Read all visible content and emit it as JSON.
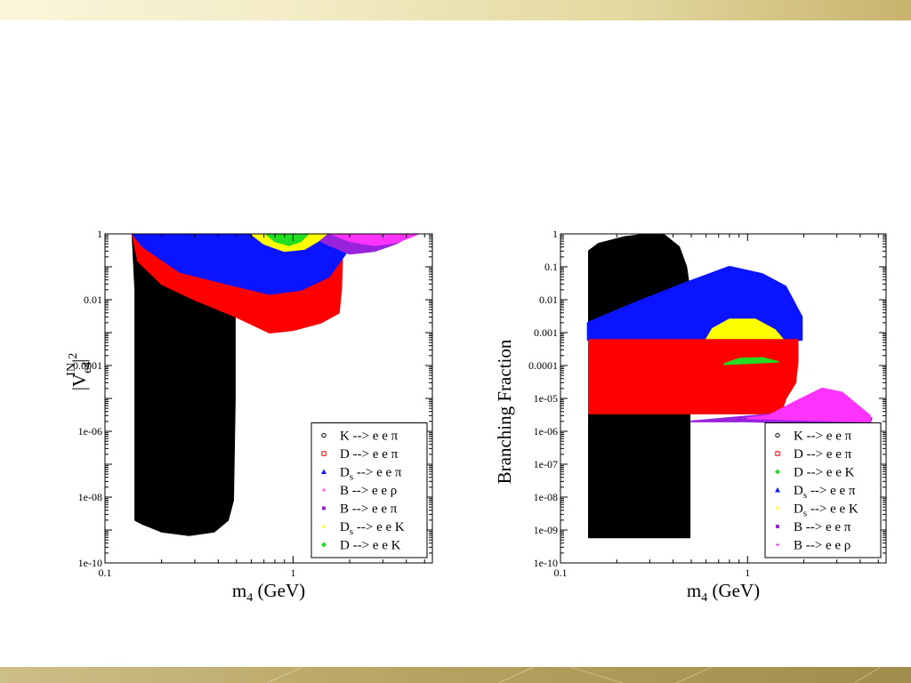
{
  "colors": {
    "top_bar": "#f2ebc3",
    "bottom_bar": "#b8a462",
    "black": "#000000",
    "red": "#ff0000",
    "blue": "#0a14ff",
    "green": "#22dd22",
    "yellow": "#ffff00",
    "magenta": "#ff33ff",
    "purple": "#9922dd"
  },
  "chart_data": [
    {
      "type": "scatter",
      "title": "",
      "xlabel": "m4 (GeV)",
      "ylabel": "|Ve4IN|2",
      "xscale": "log",
      "yscale": "log",
      "xlim": [
        0.1,
        5.5
      ],
      "ylim": [
        1e-10,
        1
      ],
      "xticks": [
        "0.1",
        "1"
      ],
      "yticks": [
        "1e-10",
        "1e-08",
        "1e-06",
        "0.0001",
        "0.01",
        "1"
      ],
      "legend": {
        "placement": "bottom-right",
        "entries": [
          {
            "label": "K --> e e π",
            "color": "#000000",
            "marker": "circle"
          },
          {
            "label": "D --> e e π",
            "color": "#ff0000",
            "marker": "square"
          },
          {
            "label": "Ds --> e e π",
            "color": "#0a14ff",
            "marker": "triangle"
          },
          {
            "label": "B --> e e ρ",
            "color": "#ff33ff",
            "marker": "plus"
          },
          {
            "label": "B --> e e π",
            "color": "#9922dd",
            "marker": "x"
          },
          {
            "label": "Ds --> e e K",
            "color": "#ffff00",
            "marker": "star"
          },
          {
            "label": "D --> e e K",
            "color": "#22dd22",
            "marker": "diamond"
          }
        ]
      },
      "series": [
        {
          "name": "K --> e e π",
          "color": "#000000",
          "points": [
            [
              0.14,
              1
            ],
            [
              0.145,
              0.02
            ],
            [
              0.145,
              2e-09
            ],
            [
              0.16,
              1.5e-09
            ],
            [
              0.2,
              9e-10
            ],
            [
              0.28,
              7e-10
            ],
            [
              0.38,
              9e-10
            ],
            [
              0.45,
              2e-09
            ],
            [
              0.48,
              8e-09
            ],
            [
              0.49,
              1e-05
            ],
            [
              0.49,
              1
            ]
          ]
        },
        {
          "name": "D --> e e π",
          "color": "#ff0000",
          "points": [
            [
              0.14,
              1
            ],
            [
              0.15,
              0.15
            ],
            [
              0.2,
              0.03
            ],
            [
              0.3,
              0.01
            ],
            [
              0.5,
              0.003
            ],
            [
              0.75,
              0.001
            ],
            [
              1,
              0.0012
            ],
            [
              1.4,
              0.002
            ],
            [
              1.75,
              0.004
            ],
            [
              1.8,
              0.02
            ],
            [
              1.82,
              0.15
            ],
            [
              1.85,
              1
            ]
          ]
        },
        {
          "name": "Ds --> e e π",
          "color": "#0a14ff",
          "points": [
            [
              0.14,
              1
            ],
            [
              0.16,
              0.4
            ],
            [
              0.25,
              0.07
            ],
            [
              0.45,
              0.03
            ],
            [
              0.75,
              0.015
            ],
            [
              1.1,
              0.02
            ],
            [
              1.55,
              0.05
            ],
            [
              1.9,
              0.25
            ],
            [
              2.05,
              1
            ]
          ]
        },
        {
          "name": "B --> e e π",
          "color": "#9922dd",
          "points": [
            [
              1.2,
              1
            ],
            [
              1.5,
              0.5
            ],
            [
              2,
              0.25
            ],
            [
              2.7,
              0.3
            ],
            [
              3.5,
              0.5
            ],
            [
              4.4,
              1
            ]
          ]
        },
        {
          "name": "B --> e e ρ",
          "color": "#ff33ff",
          "points": [
            [
              1.6,
              1
            ],
            [
              2,
              0.6
            ],
            [
              2.7,
              0.45
            ],
            [
              3.5,
              0.55
            ],
            [
              4.2,
              0.8
            ],
            [
              4.6,
              1
            ]
          ]
        },
        {
          "name": "Ds --> e e K",
          "color": "#ffff00",
          "points": [
            [
              0.6,
              1
            ],
            [
              0.7,
              0.5
            ],
            [
              0.9,
              0.3
            ],
            [
              1.15,
              0.35
            ],
            [
              1.35,
              0.6
            ],
            [
              1.5,
              1
            ]
          ]
        },
        {
          "name": "D --> e e K",
          "color": "#22dd22",
          "points": [
            [
              0.72,
              1
            ],
            [
              0.8,
              0.6
            ],
            [
              0.95,
              0.45
            ],
            [
              1.1,
              0.6
            ],
            [
              1.2,
              1
            ]
          ]
        }
      ]
    },
    {
      "type": "scatter",
      "title": "",
      "xlabel": "m4 (GeV)",
      "ylabel": "Branching Fraction",
      "xscale": "log",
      "yscale": "log",
      "xlim": [
        0.1,
        5.5
      ],
      "ylim": [
        1e-10,
        1
      ],
      "xticks": [
        "0.1",
        "1"
      ],
      "yticks": [
        "1e-10",
        "1e-09",
        "1e-08",
        "1e-07",
        "1e-06",
        "1e-05",
        "0.0001",
        "0.001",
        "0.01",
        "0.1",
        "1"
      ],
      "legend": {
        "placement": "bottom-right",
        "entries": [
          {
            "label": "K --> e e π",
            "color": "#000000",
            "marker": "circle"
          },
          {
            "label": "D --> e e π",
            "color": "#ff0000",
            "marker": "square"
          },
          {
            "label": "D --> e e K",
            "color": "#22dd22",
            "marker": "diamond"
          },
          {
            "label": "Ds --> e e π",
            "color": "#0a14ff",
            "marker": "triangle"
          },
          {
            "label": "Ds --> e e K",
            "color": "#ffff00",
            "marker": "star"
          },
          {
            "label": "B --> e e π",
            "color": "#9922dd",
            "marker": "x"
          },
          {
            "label": "B --> e e ρ",
            "color": "#ff33ff",
            "marker": "plus"
          }
        ]
      },
      "series": [
        {
          "name": "K --> e e π",
          "color": "#000000",
          "points": [
            [
              0.142,
              6e-10
            ],
            [
              0.142,
              0.3
            ],
            [
              0.16,
              0.5
            ],
            [
              0.22,
              0.8
            ],
            [
              0.3,
              1
            ],
            [
              0.36,
              0.9
            ],
            [
              0.43,
              0.4
            ],
            [
              0.47,
              0.1
            ],
            [
              0.49,
              0.02
            ],
            [
              0.49,
              6e-10
            ]
          ]
        },
        {
          "name": "Ds --> e e π",
          "color": "#0a14ff",
          "points": [
            [
              0.14,
              0.0006
            ],
            [
              0.14,
              0.002
            ],
            [
              0.25,
              0.008
            ],
            [
              0.45,
              0.03
            ],
            [
              0.8,
              0.1
            ],
            [
              1.2,
              0.06
            ],
            [
              1.6,
              0.025
            ],
            [
              1.95,
              0.003
            ],
            [
              1.95,
              0.0006
            ]
          ]
        },
        {
          "name": "Ds --> e e K",
          "color": "#ffff00",
          "points": [
            [
              0.6,
              0.0006
            ],
            [
              0.65,
              0.0013
            ],
            [
              0.8,
              0.0025
            ],
            [
              1.1,
              0.0025
            ],
            [
              1.4,
              0.0012
            ],
            [
              1.55,
              0.0006
            ]
          ]
        },
        {
          "name": "D --> e e π",
          "color": "#ff0000",
          "points": [
            [
              0.142,
              3.5e-06
            ],
            [
              0.142,
              0.0006
            ],
            [
              1.85,
              0.0006
            ],
            [
              1.85,
              0.00013
            ],
            [
              1.8,
              3e-05
            ],
            [
              1.6,
              1e-05
            ],
            [
              1.5,
              3.5e-06
            ]
          ]
        },
        {
          "name": "D --> e e K",
          "color": "#22dd22",
          "points": [
            [
              0.75,
              0.00011
            ],
            [
              0.9,
              0.00016
            ],
            [
              1.2,
              0.00017
            ],
            [
              1.45,
              0.00013
            ],
            [
              1.05,
              0.00012
            ]
          ]
        },
        {
          "name": "B --> e e π",
          "color": "#9922dd",
          "points": [
            [
              0.5,
              2e-06
            ],
            [
              1,
              2e-06
            ],
            [
              2,
              1.8e-06
            ],
            [
              4.5,
              1.8e-06
            ],
            [
              4.6,
              2.5e-06
            ],
            [
              1.5,
              3.5e-06
            ]
          ]
        },
        {
          "name": "B --> e e ρ",
          "color": "#ff33ff",
          "points": [
            [
              1,
              2.5e-06
            ],
            [
              1.3,
              3e-06
            ],
            [
              1.8,
              8e-06
            ],
            [
              2.5,
              2e-05
            ],
            [
              3.2,
              1.5e-05
            ],
            [
              4.5,
              3e-06
            ],
            [
              4.5,
              2e-06
            ]
          ]
        }
      ]
    }
  ]
}
